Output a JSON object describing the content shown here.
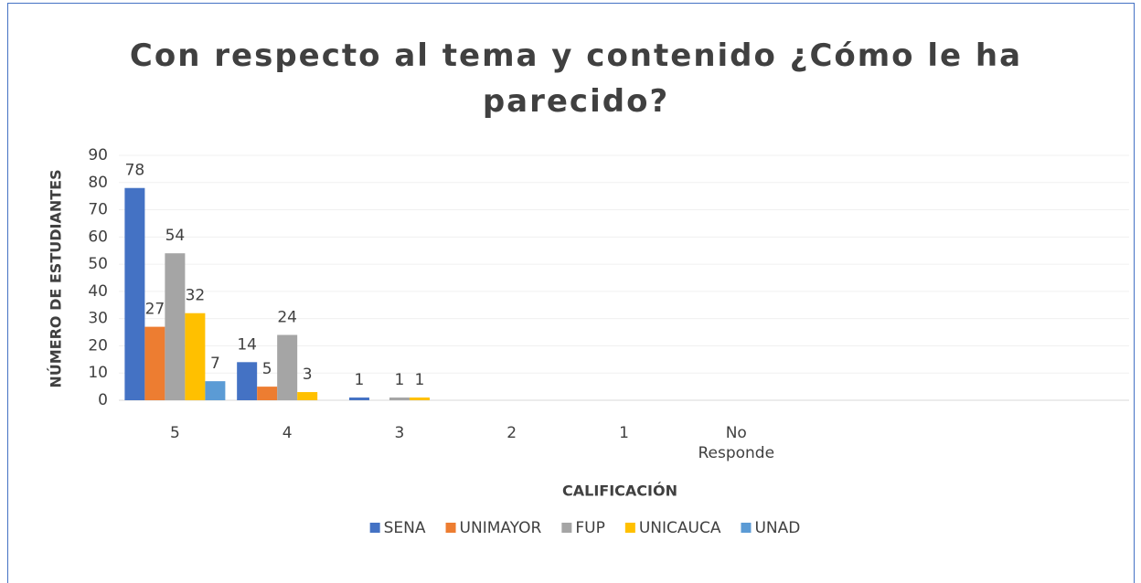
{
  "chart_data": {
    "type": "bar",
    "title": "Con respecto al tema y contenido ¿Cómo le ha parecido?",
    "x_label": "CALIFICACIÓN",
    "y_label": "NÚMERO DE ESTUDIANTES",
    "categories": [
      "5",
      "4",
      "3",
      "2",
      "1",
      "No Responde",
      null,
      null,
      null
    ],
    "series": [
      {
        "name": "SENA",
        "color": "#4472c4",
        "values": [
          78,
          14,
          1,
          null,
          null,
          null,
          null,
          null,
          null
        ]
      },
      {
        "name": "UNIMAYOR",
        "color": "#ed7d31",
        "values": [
          27,
          5,
          null,
          null,
          null,
          null,
          null,
          null,
          null
        ]
      },
      {
        "name": "FUP",
        "color": "#a5a5a5",
        "values": [
          54,
          24,
          1,
          null,
          null,
          null,
          null,
          null,
          null
        ]
      },
      {
        "name": "UNICAUCA",
        "color": "#ffc000",
        "values": [
          32,
          3,
          1,
          null,
          null,
          null,
          null,
          null,
          null
        ]
      },
      {
        "name": "UNAD",
        "color": "#5b9bd5",
        "values": [
          7,
          null,
          null,
          null,
          null,
          null,
          null,
          null,
          null
        ]
      }
    ],
    "ylim": [
      0,
      90
    ],
    "yticks": [
      0,
      10,
      20,
      30,
      40,
      50,
      60,
      70,
      80,
      90
    ],
    "grid": true,
    "legend": "bottom"
  }
}
